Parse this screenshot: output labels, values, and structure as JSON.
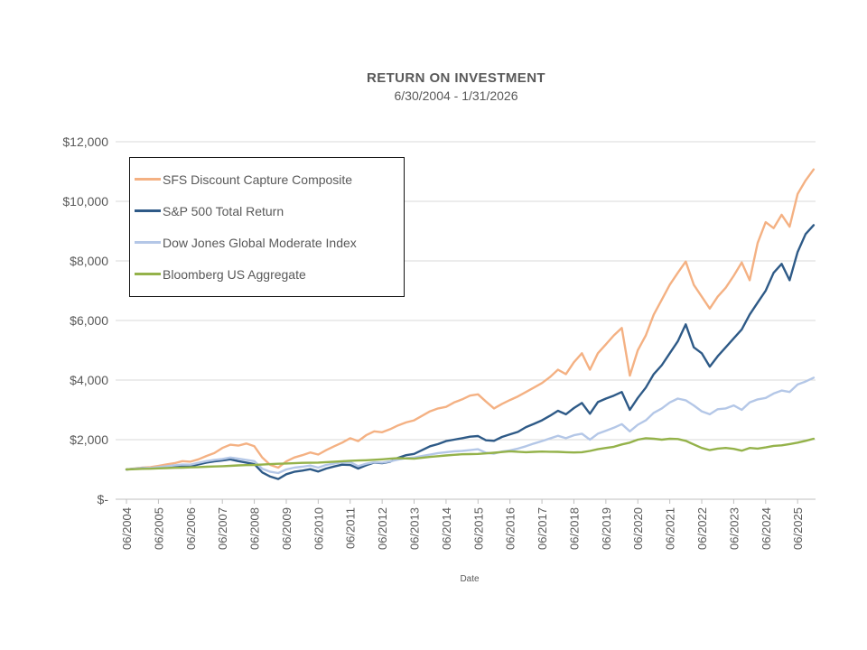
{
  "header": {
    "title": "RETURN ON INVESTMENT",
    "subtitle": "6/30/2004 - 1/31/2026"
  },
  "colors": {
    "grid": "#D9D9D9",
    "axis": "#BFBFBF",
    "text": "#595959",
    "legend_border": "#111111",
    "background": "#FFFFFF"
  },
  "chart_data": {
    "type": "line",
    "title": "RETURN ON INVESTMENT",
    "subtitle": "6/30/2004 - 1/31/2026",
    "xlabel": "Date",
    "ylabel": "",
    "grid": "horizontal",
    "legend_position": "top-left-inside",
    "ylim": [
      0,
      12000
    ],
    "y_ticks": [
      {
        "value": 0,
        "label": "$-"
      },
      {
        "value": 2000,
        "label": "$2,000"
      },
      {
        "value": 4000,
        "label": "$4,000"
      },
      {
        "value": 6000,
        "label": "$6,000"
      },
      {
        "value": 8000,
        "label": "$8,000"
      },
      {
        "value": 10000,
        "label": "$10,000"
      },
      {
        "value": 12000,
        "label": "$12,000"
      }
    ],
    "x_axis_min": 2004.16,
    "x_axis_max": 2026.06,
    "x_ticks": [
      {
        "value": 2004.5,
        "label": "06/2004"
      },
      {
        "value": 2005.5,
        "label": "06/2005"
      },
      {
        "value": 2006.5,
        "label": "06/2006"
      },
      {
        "value": 2007.5,
        "label": "06/2007"
      },
      {
        "value": 2008.5,
        "label": "06/2008"
      },
      {
        "value": 2009.5,
        "label": "06/2009"
      },
      {
        "value": 2010.5,
        "label": "06/2010"
      },
      {
        "value": 2011.5,
        "label": "06/2011"
      },
      {
        "value": 2012.5,
        "label": "06/2012"
      },
      {
        "value": 2013.5,
        "label": "06/2013"
      },
      {
        "value": 2014.5,
        "label": "06/2014"
      },
      {
        "value": 2015.5,
        "label": "06/2015"
      },
      {
        "value": 2016.5,
        "label": "06/2016"
      },
      {
        "value": 2017.5,
        "label": "06/2017"
      },
      {
        "value": 2018.5,
        "label": "06/2018"
      },
      {
        "value": 2019.5,
        "label": "06/2019"
      },
      {
        "value": 2020.5,
        "label": "06/2020"
      },
      {
        "value": 2021.5,
        "label": "06/2021"
      },
      {
        "value": 2022.5,
        "label": "06/2022"
      },
      {
        "value": 2023.5,
        "label": "06/2023"
      },
      {
        "value": 2024.5,
        "label": "06/2024"
      },
      {
        "value": 2025.5,
        "label": "06/2025"
      }
    ],
    "x_start": 2004.5,
    "x_step": 0.25,
    "series": [
      {
        "name": "SFS Discount Capture Composite",
        "color": "#F4B183",
        "values": [
          1000,
          1030,
          1065,
          1080,
          1120,
          1170,
          1210,
          1280,
          1260,
          1340,
          1450,
          1550,
          1720,
          1830,
          1800,
          1870,
          1780,
          1400,
          1150,
          1060,
          1270,
          1400,
          1480,
          1570,
          1500,
          1650,
          1780,
          1900,
          2050,
          1950,
          2150,
          2280,
          2250,
          2350,
          2480,
          2580,
          2650,
          2800,
          2950,
          3050,
          3100,
          3250,
          3350,
          3480,
          3520,
          3280,
          3050,
          3200,
          3330,
          3450,
          3600,
          3750,
          3900,
          4100,
          4350,
          4200,
          4600,
          4900,
          4350,
          4900,
          5200,
          5500,
          5750,
          4150,
          5000,
          5500,
          6200,
          6700,
          7200,
          7600,
          7980,
          7200,
          6800,
          6400,
          6800,
          7100,
          7500,
          7950,
          7350,
          8600,
          9300,
          9100,
          9550,
          9150,
          10250,
          10700,
          11070
        ]
      },
      {
        "name": "S&P 500 Total Return",
        "color": "#2E5A87",
        "values": [
          1000,
          1020,
          1045,
          1035,
          1060,
          1075,
          1100,
          1125,
          1110,
          1170,
          1230,
          1270,
          1300,
          1340,
          1280,
          1230,
          1180,
          900,
          760,
          680,
          840,
          920,
          960,
          1010,
          930,
          1030,
          1100,
          1160,
          1150,
          1030,
          1140,
          1230,
          1210,
          1260,
          1390,
          1480,
          1520,
          1650,
          1780,
          1850,
          1950,
          2000,
          2050,
          2100,
          2120,
          1980,
          1960,
          2090,
          2180,
          2260,
          2420,
          2530,
          2650,
          2800,
          2970,
          2850,
          3060,
          3230,
          2870,
          3260,
          3380,
          3480,
          3600,
          3000,
          3400,
          3750,
          4200,
          4500,
          4900,
          5300,
          5870,
          5100,
          4900,
          4450,
          4800,
          5100,
          5400,
          5700,
          6200,
          6600,
          7000,
          7600,
          7900,
          7350,
          8300,
          8900,
          9200
        ]
      },
      {
        "name": "Dow Jones Global Moderate Index",
        "color": "#B4C7E7",
        "values": [
          1000,
          1025,
          1050,
          1045,
          1080,
          1110,
          1140,
          1165,
          1160,
          1220,
          1280,
          1320,
          1350,
          1400,
          1360,
          1320,
          1280,
          1020,
          920,
          880,
          1000,
          1060,
          1090,
          1130,
          1060,
          1150,
          1200,
          1240,
          1250,
          1110,
          1190,
          1240,
          1230,
          1270,
          1330,
          1380,
          1400,
          1450,
          1500,
          1550,
          1580,
          1610,
          1620,
          1650,
          1680,
          1560,
          1530,
          1600,
          1640,
          1700,
          1780,
          1870,
          1950,
          2040,
          2130,
          2050,
          2150,
          2200,
          2000,
          2200,
          2300,
          2400,
          2520,
          2280,
          2500,
          2650,
          2900,
          3050,
          3250,
          3380,
          3320,
          3150,
          2950,
          2850,
          3020,
          3050,
          3150,
          3000,
          3250,
          3350,
          3400,
          3550,
          3650,
          3600,
          3850,
          3950,
          4080
        ]
      },
      {
        "name": "Bloomberg US Aggregate",
        "color": "#94B24A",
        "values": [
          1000,
          1010,
          1020,
          1025,
          1035,
          1045,
          1055,
          1060,
          1070,
          1080,
          1090,
          1100,
          1110,
          1120,
          1135,
          1145,
          1150,
          1165,
          1180,
          1190,
          1200,
          1210,
          1220,
          1225,
          1230,
          1245,
          1260,
          1275,
          1290,
          1300,
          1310,
          1325,
          1340,
          1360,
          1380,
          1370,
          1360,
          1390,
          1420,
          1445,
          1470,
          1490,
          1510,
          1515,
          1520,
          1540,
          1560,
          1585,
          1610,
          1595,
          1580,
          1590,
          1600,
          1595,
          1590,
          1580,
          1570,
          1580,
          1620,
          1680,
          1720,
          1760,
          1840,
          1900,
          2000,
          2050,
          2030,
          2000,
          2030,
          2020,
          1960,
          1840,
          1720,
          1650,
          1700,
          1720,
          1690,
          1630,
          1720,
          1700,
          1740,
          1790,
          1810,
          1850,
          1900,
          1960,
          2030
        ]
      }
    ]
  }
}
